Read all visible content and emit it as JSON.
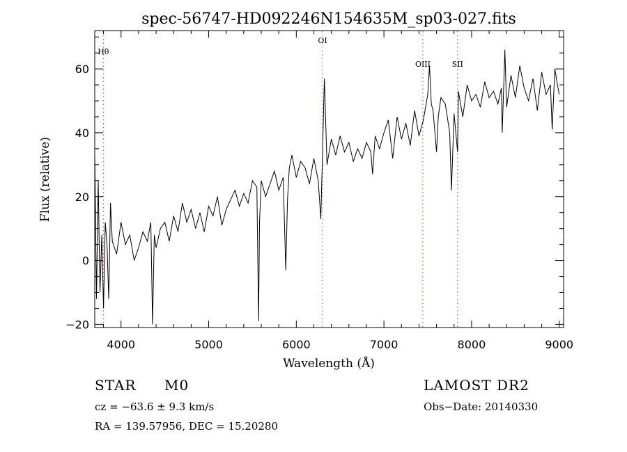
{
  "chart_data": {
    "type": "line",
    "title": "spec-56747-HD092246N154635M_sp03-027.fits",
    "xlabel": "Wavelength (Å)",
    "ylabel": "Flux (relative)",
    "xlim": [
      3700,
      9050
    ],
    "ylim": [
      -21,
      72
    ],
    "x_ticks": [
      4000,
      5000,
      6000,
      7000,
      8000,
      9000
    ],
    "y_ticks": [
      -20,
      0,
      20,
      40,
      60
    ],
    "grid": false,
    "line_color": "#000000",
    "marker_color": "#cc3333",
    "lines": [
      {
        "label": "Hθ",
        "wavelength": 3798
      },
      {
        "label": "OI",
        "wavelength": 6300
      },
      {
        "label": "OIII",
        "wavelength": 7444
      },
      {
        "label": "SII",
        "wavelength": 7840
      }
    ],
    "series": [
      {
        "x": [
          3700,
          3720,
          3740,
          3760,
          3780,
          3800,
          3820,
          3840,
          3860,
          3880,
          3900,
          3950,
          4000,
          4050,
          4100,
          4150,
          4200,
          4250,
          4300,
          4340,
          4360,
          4380,
          4400,
          4450,
          4500,
          4550,
          4600,
          4650,
          4700,
          4750,
          4800,
          4850,
          4900,
          4950,
          5000,
          5050,
          5100,
          5150,
          5200,
          5250,
          5300,
          5350,
          5400,
          5450,
          5500,
          5550,
          5570,
          5580,
          5600,
          5650,
          5700,
          5750,
          5800,
          5850,
          5880,
          5900,
          5920,
          5950,
          6000,
          6050,
          6100,
          6150,
          6200,
          6250,
          6280,
          6300,
          6320,
          6350,
          6400,
          6450,
          6500,
          6550,
          6600,
          6650,
          6700,
          6750,
          6800,
          6850,
          6870,
          6900,
          6950,
          7000,
          7050,
          7100,
          7150,
          7200,
          7250,
          7300,
          7350,
          7400,
          7450,
          7500,
          7520,
          7540,
          7560,
          7600,
          7620,
          7650,
          7700,
          7750,
          7770,
          7800,
          7840,
          7850,
          7900,
          7950,
          8000,
          8050,
          8100,
          8150,
          8200,
          8250,
          8300,
          8340,
          8350,
          8380,
          8400,
          8450,
          8500,
          8550,
          8600,
          8650,
          8700,
          8750,
          8800,
          8850,
          8900,
          8920,
          8950,
          8980,
          9000
        ],
        "values": [
          34,
          -12,
          25,
          -10,
          8,
          -15,
          12,
          5,
          -12,
          18,
          6,
          2,
          12,
          5,
          8,
          0,
          4,
          9,
          6,
          12,
          -20,
          8,
          4,
          10,
          12,
          6,
          14,
          9,
          18,
          12,
          16,
          10,
          15,
          9,
          17,
          14,
          20,
          11,
          16,
          19,
          22,
          17,
          21,
          18,
          25,
          23,
          -19,
          12,
          25,
          20,
          24,
          28,
          22,
          26,
          -3,
          19,
          29,
          33,
          26,
          31,
          29,
          24,
          32,
          25,
          13,
          35,
          57,
          30,
          38,
          33,
          39,
          34,
          37,
          31,
          35,
          32,
          37,
          34,
          27,
          39,
          35,
          40,
          44,
          32,
          45,
          38,
          43,
          36,
          47,
          39,
          44,
          52,
          61,
          49,
          47,
          34,
          45,
          51,
          49,
          40,
          22,
          46,
          34,
          53,
          45,
          55,
          50,
          52,
          48,
          56,
          51,
          53,
          49,
          54,
          40,
          66,
          48,
          58,
          51,
          61,
          54,
          50,
          57,
          47,
          59,
          52,
          55,
          41,
          60,
          55,
          52
        ]
      }
    ],
    "footer": {
      "class_label": "STAR",
      "subclass_label": "M0",
      "cz_text": "cz = −63.6 ± 9.3 km/s",
      "coords_text": "RA = 139.57956, DEC =  15.20280",
      "survey_text": "LAMOST DR2",
      "obs_date_text": "Obs−Date: 20140330"
    }
  }
}
